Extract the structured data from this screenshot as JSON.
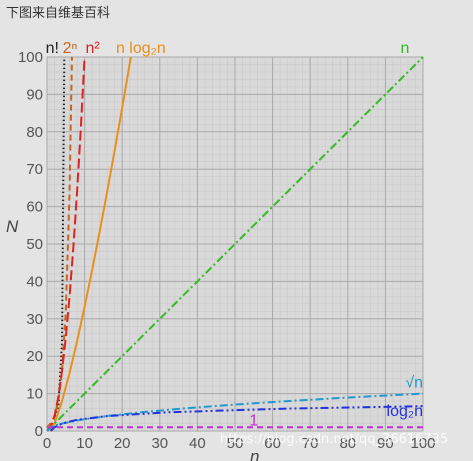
{
  "caption": "下图来自维基百科",
  "watermark": "https://blog.csdn.net/qq_36616735",
  "chart_data": {
    "type": "line",
    "xlabel": "n",
    "ylabel": "N",
    "xlim": [
      0,
      100
    ],
    "ylim": [
      0,
      100
    ],
    "x_ticks": [
      0,
      10,
      20,
      30,
      40,
      50,
      60,
      70,
      80,
      90,
      100
    ],
    "y_ticks": [
      0,
      10,
      20,
      30,
      40,
      50,
      60,
      70,
      80,
      90,
      100
    ],
    "grid": true,
    "series": [
      {
        "name": "n!",
        "color": "#222222",
        "dash": "dotted",
        "x": [
          0,
          1,
          2,
          3,
          4,
          4.6
        ],
        "y": [
          1,
          1,
          2,
          6,
          24,
          100
        ]
      },
      {
        "name": "2ⁿ",
        "color": "#c8641e",
        "dash": "dashed",
        "x": [
          0,
          1,
          2,
          3,
          4,
          5,
          6,
          6.64
        ],
        "y": [
          1,
          2,
          4,
          8,
          16,
          32,
          64,
          100
        ]
      },
      {
        "name": "n²",
        "color": "#dd2222",
        "dash": "longdash",
        "x": [
          0,
          1,
          2,
          3,
          4,
          5,
          6,
          7,
          8,
          9,
          10
        ],
        "y": [
          0,
          1,
          4,
          9,
          16,
          25,
          36,
          49,
          64,
          81,
          100
        ]
      },
      {
        "name": "n log₂n",
        "color": "#e8901e",
        "dash": "solid",
        "x": [
          1,
          2,
          4,
          6,
          8,
          10,
          12,
          14,
          16,
          18,
          20,
          22.3
        ],
        "y": [
          0,
          2,
          8,
          15.5,
          24,
          33.2,
          43,
          53.3,
          64,
          75.1,
          86.4,
          100
        ]
      },
      {
        "name": "n",
        "color": "#33bb22",
        "dash": "dashdot",
        "x": [
          0,
          100
        ],
        "y": [
          0,
          100
        ]
      },
      {
        "name": "√n",
        "color": "#2299cc",
        "dash": "dashdot",
        "x": [
          0,
          1,
          2,
          4,
          9,
          16,
          25,
          36,
          49,
          64,
          81,
          100
        ],
        "y": [
          0,
          1,
          1.41,
          2,
          3,
          4,
          5,
          6,
          7,
          8,
          9,
          10
        ]
      },
      {
        "name": "log₂n",
        "color": "#2233dd",
        "dash": "dashdotdot",
        "x": [
          1,
          2,
          4,
          8,
          16,
          32,
          64,
          100
        ],
        "y": [
          0,
          1,
          2,
          3,
          4,
          5,
          6,
          6.64
        ]
      },
      {
        "name": "1",
        "color": "#bb33cc",
        "dash": "dashed",
        "x": [
          0,
          100
        ],
        "y": [
          1,
          1
        ]
      }
    ]
  }
}
